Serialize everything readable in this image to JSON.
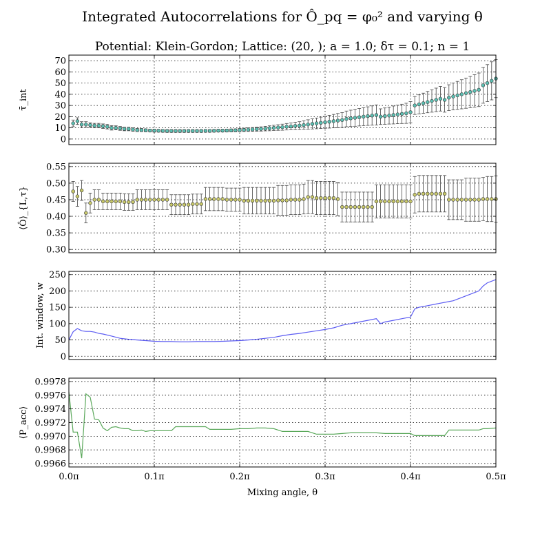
{
  "figure": {
    "title": "Integrated Autocorrelations for Ô_pq = φ₀² and varying θ",
    "subtitle": "Potential: Klein-Gordon; Lattice: (20, ); a = 1.0; δτ = 0.1; n = 1",
    "xlabel": "Mixing angle, θ",
    "xtick_labels": [
      "0.0π",
      "0.1π",
      "0.2π",
      "0.3π",
      "0.4π",
      "0.5π"
    ]
  },
  "chart_data": [
    {
      "type": "scatter",
      "ylabel": "τ̄_int",
      "xlim": [
        0,
        0.5
      ],
      "ylim": [
        -5,
        75
      ],
      "yticks": [
        0,
        10,
        20,
        30,
        40,
        50,
        60,
        70
      ],
      "yticklabels": [
        "0",
        "10",
        "20",
        "30",
        "40",
        "50",
        "60",
        "70"
      ],
      "color": "#5cbfb2",
      "grid": true,
      "series": [
        {
          "x": [
            0.005,
            0.01,
            0.015,
            0.02,
            0.025,
            0.03,
            0.035,
            0.04,
            0.045,
            0.05,
            0.055,
            0.06,
            0.065,
            0.07,
            0.075,
            0.08,
            0.085,
            0.09,
            0.095,
            0.1,
            0.105,
            0.11,
            0.115,
            0.12,
            0.125,
            0.13,
            0.135,
            0.14,
            0.145,
            0.15,
            0.155,
            0.16,
            0.165,
            0.17,
            0.175,
            0.18,
            0.185,
            0.19,
            0.195,
            0.2,
            0.205,
            0.21,
            0.215,
            0.22,
            0.225,
            0.23,
            0.235,
            0.24,
            0.245,
            0.25,
            0.255,
            0.26,
            0.265,
            0.27,
            0.275,
            0.28,
            0.285,
            0.29,
            0.295,
            0.3,
            0.305,
            0.31,
            0.315,
            0.32,
            0.325,
            0.33,
            0.335,
            0.34,
            0.345,
            0.35,
            0.355,
            0.36,
            0.365,
            0.37,
            0.375,
            0.38,
            0.385,
            0.39,
            0.395,
            0.4,
            0.405,
            0.41,
            0.415,
            0.42,
            0.425,
            0.43,
            0.435,
            0.44,
            0.445,
            0.45,
            0.455,
            0.46,
            0.465,
            0.47,
            0.475,
            0.48,
            0.485,
            0.49,
            0.495,
            0.5
          ],
          "y": [
            14,
            16,
            13,
            13,
            12.5,
            12,
            12,
            11.5,
            11,
            10,
            10,
            9.5,
            9,
            9,
            8.5,
            8,
            8,
            7.8,
            7.6,
            7.5,
            7.4,
            7.3,
            7.2,
            7.2,
            7.2,
            7.2,
            7.2,
            7.2,
            7.2,
            7.2,
            7.2,
            7.3,
            7.3,
            7.4,
            7.5,
            7.5,
            7.6,
            7.7,
            7.8,
            8,
            8.2,
            8.4,
            8.6,
            8.8,
            9,
            9.3,
            9.6,
            10,
            10.3,
            10.6,
            11,
            11.3,
            11.7,
            12,
            12.5,
            13,
            13.5,
            14,
            14.5,
            15,
            15.5,
            16,
            16.5,
            17,
            18,
            18.5,
            19,
            19.5,
            20,
            20.5,
            21,
            21.5,
            20,
            20.5,
            21,
            21.5,
            22,
            22.5,
            23,
            24,
            30,
            31,
            32,
            33,
            34,
            35,
            36,
            35,
            37,
            38,
            39,
            40,
            41,
            42,
            43,
            44,
            48,
            50,
            52,
            54
          ],
          "err": [
            3,
            3,
            2.5,
            2.5,
            2,
            2,
            2,
            2,
            2,
            2,
            1.8,
            1.7,
            1.6,
            1.6,
            1.5,
            1.4,
            1.4,
            1.3,
            1.3,
            1.3,
            1.2,
            1.2,
            1.2,
            1.2,
            1.2,
            1.2,
            1.2,
            1.2,
            1.2,
            1.2,
            1.2,
            1.2,
            1.2,
            1.2,
            1.2,
            1.2,
            1.3,
            1.3,
            1.3,
            1.4,
            1.5,
            1.6,
            1.7,
            1.8,
            1.9,
            2,
            2.2,
            2.3,
            2.5,
            2.7,
            2.9,
            3.1,
            3.3,
            3.5,
            3.8,
            4.2,
            4.5,
            4.8,
            5.1,
            5.4,
            5.7,
            6,
            6.3,
            6.6,
            7,
            7.3,
            7.6,
            7.8,
            8,
            8.3,
            8.6,
            9,
            7,
            7.3,
            7.6,
            8,
            8.3,
            8.6,
            9,
            9.5,
            8,
            8.5,
            9,
            9.5,
            10,
            10.5,
            11,
            11,
            11.5,
            12,
            12.5,
            13,
            13.5,
            14,
            14.5,
            15,
            16,
            16.5,
            17,
            17
          ]
        }
      ]
    },
    {
      "type": "scatter",
      "ylabel": "⟨Ô⟩_{L,τ}",
      "xlim": [
        0,
        0.5
      ],
      "ylim": [
        0.29,
        0.56
      ],
      "yticks": [
        0.3,
        0.35,
        0.4,
        0.45,
        0.5,
        0.55
      ],
      "yticklabels": [
        "0.30",
        "0.35",
        "0.40",
        "0.45",
        "0.50",
        "0.55"
      ],
      "color": "#c8c86a",
      "grid": true,
      "series": [
        {
          "x": [
            0.005,
            0.01,
            0.015,
            0.02,
            0.025,
            0.03,
            0.035,
            0.04,
            0.045,
            0.05,
            0.055,
            0.06,
            0.065,
            0.07,
            0.075,
            0.08,
            0.085,
            0.09,
            0.095,
            0.1,
            0.105,
            0.11,
            0.115,
            0.12,
            0.125,
            0.13,
            0.135,
            0.14,
            0.145,
            0.15,
            0.155,
            0.16,
            0.165,
            0.17,
            0.175,
            0.18,
            0.185,
            0.19,
            0.195,
            0.2,
            0.205,
            0.21,
            0.215,
            0.22,
            0.225,
            0.23,
            0.235,
            0.24,
            0.245,
            0.25,
            0.255,
            0.26,
            0.265,
            0.27,
            0.275,
            0.28,
            0.285,
            0.29,
            0.295,
            0.3,
            0.305,
            0.31,
            0.315,
            0.32,
            0.325,
            0.33,
            0.335,
            0.34,
            0.345,
            0.35,
            0.355,
            0.36,
            0.365,
            0.37,
            0.375,
            0.38,
            0.385,
            0.39,
            0.395,
            0.4,
            0.405,
            0.41,
            0.415,
            0.42,
            0.425,
            0.43,
            0.435,
            0.44,
            0.445,
            0.45,
            0.455,
            0.46,
            0.465,
            0.47,
            0.475,
            0.48,
            0.485,
            0.49,
            0.495,
            0.5
          ],
          "y": [
            0.475,
            0.46,
            0.478,
            0.41,
            0.44,
            0.45,
            0.45,
            0.445,
            0.445,
            0.445,
            0.445,
            0.445,
            0.443,
            0.443,
            0.443,
            0.45,
            0.45,
            0.45,
            0.45,
            0.45,
            0.45,
            0.45,
            0.45,
            0.435,
            0.435,
            0.435,
            0.435,
            0.435,
            0.437,
            0.437,
            0.437,
            0.452,
            0.452,
            0.452,
            0.452,
            0.452,
            0.45,
            0.45,
            0.45,
            0.45,
            0.447,
            0.447,
            0.447,
            0.447,
            0.447,
            0.447,
            0.447,
            0.447,
            0.448,
            0.448,
            0.448,
            0.45,
            0.45,
            0.45,
            0.452,
            0.458,
            0.458,
            0.455,
            0.455,
            0.455,
            0.455,
            0.455,
            0.452,
            0.428,
            0.428,
            0.428,
            0.428,
            0.428,
            0.428,
            0.428,
            0.428,
            0.445,
            0.445,
            0.445,
            0.445,
            0.445,
            0.445,
            0.445,
            0.445,
            0.445,
            0.465,
            0.468,
            0.468,
            0.468,
            0.468,
            0.468,
            0.468,
            0.468,
            0.45,
            0.45,
            0.45,
            0.45,
            0.45,
            0.45,
            0.45,
            0.45,
            0.452,
            0.452,
            0.452,
            0.452
          ],
          "err": [
            0.03,
            0.03,
            0.03,
            0.03,
            0.03,
            0.03,
            0.03,
            0.025,
            0.025,
            0.025,
            0.025,
            0.025,
            0.025,
            0.025,
            0.025,
            0.03,
            0.03,
            0.03,
            0.03,
            0.03,
            0.03,
            0.03,
            0.03,
            0.03,
            0.03,
            0.03,
            0.03,
            0.03,
            0.03,
            0.03,
            0.03,
            0.035,
            0.035,
            0.035,
            0.035,
            0.035,
            0.035,
            0.035,
            0.035,
            0.035,
            0.04,
            0.04,
            0.04,
            0.04,
            0.04,
            0.04,
            0.04,
            0.04,
            0.045,
            0.045,
            0.045,
            0.045,
            0.045,
            0.045,
            0.045,
            0.05,
            0.05,
            0.05,
            0.05,
            0.05,
            0.05,
            0.05,
            0.05,
            0.045,
            0.045,
            0.045,
            0.045,
            0.045,
            0.045,
            0.045,
            0.045,
            0.05,
            0.05,
            0.05,
            0.05,
            0.05,
            0.05,
            0.05,
            0.05,
            0.05,
            0.055,
            0.055,
            0.055,
            0.055,
            0.055,
            0.055,
            0.055,
            0.055,
            0.06,
            0.06,
            0.06,
            0.06,
            0.065,
            0.065,
            0.065,
            0.065,
            0.065,
            0.068,
            0.068,
            0.07
          ]
        }
      ]
    },
    {
      "type": "line",
      "ylabel": "Int. window, w",
      "xlim": [
        0,
        0.5
      ],
      "ylim": [
        -10,
        260
      ],
      "yticks": [
        0,
        50,
        100,
        150,
        200,
        250
      ],
      "yticklabels": [
        "0",
        "50",
        "100",
        "150",
        "200",
        "250"
      ],
      "color": "#5b5bf2",
      "grid": true,
      "series": [
        {
          "x": [
            0,
            0.005,
            0.01,
            0.015,
            0.02,
            0.025,
            0.03,
            0.035,
            0.04,
            0.05,
            0.06,
            0.07,
            0.08,
            0.09,
            0.1,
            0.11,
            0.12,
            0.13,
            0.14,
            0.15,
            0.16,
            0.17,
            0.18,
            0.19,
            0.2,
            0.21,
            0.22,
            0.23,
            0.24,
            0.25,
            0.26,
            0.27,
            0.28,
            0.29,
            0.3,
            0.31,
            0.32,
            0.33,
            0.34,
            0.35,
            0.36,
            0.365,
            0.37,
            0.38,
            0.39,
            0.4,
            0.405,
            0.41,
            0.42,
            0.43,
            0.44,
            0.45,
            0.46,
            0.47,
            0.48,
            0.485,
            0.49,
            0.5
          ],
          "y": [
            50,
            75,
            85,
            78,
            76,
            76,
            74,
            70,
            68,
            62,
            55,
            52,
            50,
            48,
            46,
            45,
            45,
            44,
            44,
            45,
            45,
            45,
            46,
            47,
            48,
            50,
            52,
            55,
            58,
            63,
            67,
            70,
            74,
            78,
            82,
            87,
            95,
            100,
            105,
            110,
            115,
            100,
            105,
            110,
            115,
            120,
            145,
            150,
            155,
            160,
            165,
            170,
            180,
            190,
            200,
            215,
            225,
            235
          ]
        }
      ]
    },
    {
      "type": "line",
      "ylabel": "⟨P_acc⟩",
      "xlim": [
        0,
        0.5
      ],
      "ylim": [
        0.99655,
        0.99785
      ],
      "yticks": [
        0.9966,
        0.9968,
        0.997,
        0.9972,
        0.9974,
        0.9976,
        0.9978
      ],
      "yticklabels": [
        "0.9966",
        "0.9968",
        "0.9970",
        "0.9972",
        "0.9974",
        "0.9976",
        "0.9978"
      ],
      "color": "#5aa85a",
      "grid": true,
      "series": [
        {
          "x": [
            0,
            0.005,
            0.01,
            0.015,
            0.02,
            0.025,
            0.03,
            0.035,
            0.04,
            0.045,
            0.05,
            0.055,
            0.06,
            0.065,
            0.07,
            0.075,
            0.08,
            0.085,
            0.09,
            0.095,
            0.1,
            0.11,
            0.12,
            0.125,
            0.13,
            0.14,
            0.15,
            0.16,
            0.165,
            0.17,
            0.18,
            0.19,
            0.2,
            0.21,
            0.22,
            0.23,
            0.24,
            0.25,
            0.26,
            0.27,
            0.28,
            0.29,
            0.3,
            0.31,
            0.32,
            0.33,
            0.34,
            0.35,
            0.36,
            0.37,
            0.38,
            0.39,
            0.4,
            0.405,
            0.41,
            0.42,
            0.43,
            0.44,
            0.445,
            0.45,
            0.46,
            0.47,
            0.48,
            0.485,
            0.49,
            0.5
          ],
          "y": [
            0.99765,
            0.99706,
            0.99706,
            0.99668,
            0.99762,
            0.99757,
            0.99725,
            0.99724,
            0.99712,
            0.99708,
            0.99713,
            0.99714,
            0.99712,
            0.99711,
            0.99711,
            0.99708,
            0.99708,
            0.99709,
            0.99707,
            0.99708,
            0.99708,
            0.99708,
            0.99708,
            0.99714,
            0.99714,
            0.99714,
            0.99714,
            0.99714,
            0.9971,
            0.9971,
            0.9971,
            0.9971,
            0.99711,
            0.99711,
            0.99712,
            0.99712,
            0.99711,
            0.99707,
            0.99707,
            0.99707,
            0.99707,
            0.99703,
            0.99703,
            0.99703,
            0.99704,
            0.99705,
            0.99705,
            0.99705,
            0.99705,
            0.99704,
            0.99704,
            0.99704,
            0.99704,
            0.99701,
            0.99701,
            0.99701,
            0.99701,
            0.99701,
            0.99709,
            0.99709,
            0.99709,
            0.99709,
            0.99709,
            0.99711,
            0.99711,
            0.99712
          ]
        }
      ]
    }
  ]
}
